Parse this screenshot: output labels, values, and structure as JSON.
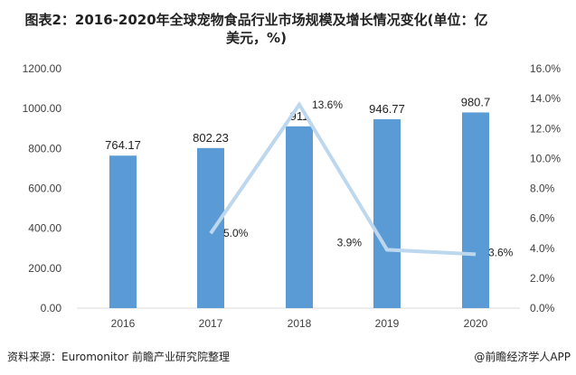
{
  "title": "图表2：2016-2020年全球宠物食品行业市场规模及增长情况变化(单位：亿美元，%)",
  "footer": {
    "source": "资料来源：Euromonitor 前瞻产业研究院整理",
    "app": "@前瞻经济学人APP"
  },
  "chart_data": {
    "type": "bar+line",
    "categories": [
      "2016",
      "2017",
      "2018",
      "2019",
      "2020"
    ],
    "series": [
      {
        "type": "bar",
        "axis": "left",
        "values": [
          764.17,
          802.23,
          911,
          946.77,
          980.7
        ],
        "labels": [
          "764.17",
          "802.23",
          "911",
          "946.77",
          "980.7"
        ],
        "color": "#5b9bd5"
      },
      {
        "type": "line",
        "axis": "right",
        "values": [
          null,
          5.0,
          13.6,
          3.9,
          3.6
        ],
        "labels": [
          "",
          "5.0%",
          "13.6%",
          "3.9%",
          "3.6%"
        ],
        "color": "#bdd7ee"
      }
    ],
    "ylim_left": [
      0,
      1200
    ],
    "yticks_left": [
      "0.00",
      "200.00",
      "400.00",
      "600.00",
      "800.00",
      "1000.00",
      "1200.00"
    ],
    "ylim_right": [
      0,
      16
    ],
    "yticks_right": [
      "0.0%",
      "2.0%",
      "4.0%",
      "6.0%",
      "8.0%",
      "10.0%",
      "12.0%",
      "14.0%",
      "16.0%"
    ],
    "grid": false,
    "legend": "none"
  }
}
